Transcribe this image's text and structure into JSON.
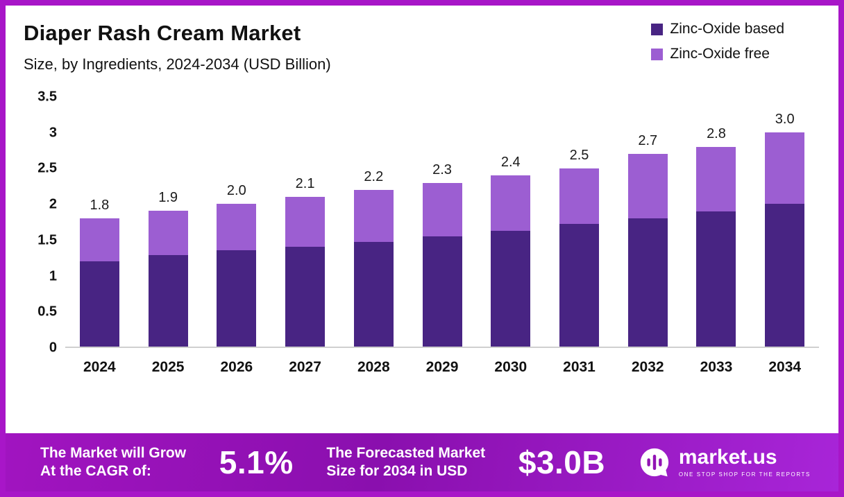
{
  "header": {
    "title": "Diaper Rash Cream Market",
    "subtitle": "Size, by Ingredients, 2024-2034 (USD Billion)"
  },
  "legend": [
    {
      "label": "Zinc-Oxide based",
      "color": "#482483"
    },
    {
      "label": "Zinc-Oxide free",
      "color": "#9c5ed2"
    }
  ],
  "chart_data": {
    "type": "bar",
    "stacked": true,
    "title": "Diaper Rash Cream Market Size, by Ingredients, 2024-2034 (USD Billion)",
    "categories": [
      "2024",
      "2025",
      "2026",
      "2027",
      "2028",
      "2029",
      "2030",
      "2031",
      "2032",
      "2033",
      "2034"
    ],
    "series": [
      {
        "name": "Zinc-Oxide based",
        "color": "#482483",
        "values": [
          1.2,
          1.28,
          1.35,
          1.4,
          1.47,
          1.55,
          1.62,
          1.72,
          1.8,
          1.9,
          2.0
        ]
      },
      {
        "name": "Zinc-Oxide free",
        "color": "#9c5ed2",
        "values": [
          0.6,
          0.62,
          0.65,
          0.7,
          0.73,
          0.75,
          0.78,
          0.78,
          0.9,
          0.9,
          1.0
        ]
      }
    ],
    "totals": [
      1.8,
      1.9,
      2.0,
      2.1,
      2.2,
      2.3,
      2.4,
      2.5,
      2.7,
      2.8,
      3.0
    ],
    "total_labels": [
      "1.8",
      "1.9",
      "2.0",
      "2.1",
      "2.2",
      "2.3",
      "2.4",
      "2.5",
      "2.7",
      "2.8",
      "3.0"
    ],
    "xlabel": "",
    "ylabel": "",
    "ylim": [
      0,
      3.5
    ],
    "yticks": [
      0,
      0.5,
      1,
      1.5,
      2,
      2.5,
      3,
      3.5
    ],
    "ytick_labels": [
      "0",
      "0.5",
      "1",
      "1.5",
      "2",
      "2.5",
      "3",
      "3.5"
    ],
    "grid": false,
    "legend_position": "top-right"
  },
  "footer": {
    "grow_line1": "The Market will Grow",
    "grow_line2": "At the CAGR of:",
    "cagr_value": "5.1%",
    "forecast_line1": "The Forecasted Market",
    "forecast_line2": "Size for 2034 in USD",
    "forecast_value": "$3.0B",
    "brand_name": "market.us",
    "brand_tagline": "ONE STOP SHOP FOR THE REPORTS"
  }
}
